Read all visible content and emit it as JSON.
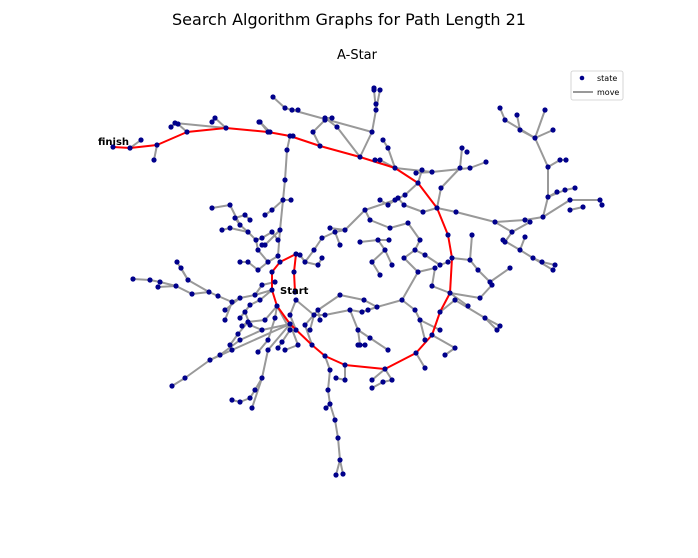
{
  "figure": {
    "suptitle": "Search Algorithm Graphs for Path Length 21",
    "subtitle": "A-Star"
  },
  "labels": {
    "finish": "finish",
    "start": "Start"
  },
  "legend": {
    "state_label": "state",
    "move_label": "move"
  },
  "colors": {
    "node": "#00008b",
    "edge": "#999999",
    "path": "#ff0000"
  }
}
